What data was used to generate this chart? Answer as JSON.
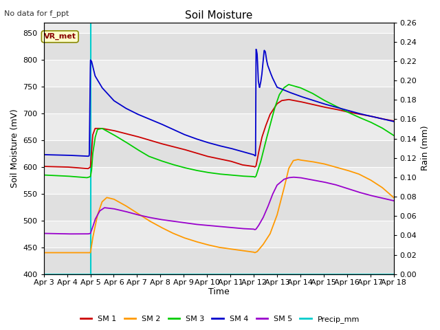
{
  "title": "Soil Moisture",
  "subtitle": "No data for f_ppt",
  "xlabel": "Time",
  "ylabel_left": "Soil Moisture (mV)",
  "ylabel_right": "Rain (mm)",
  "ylim_left": [
    400,
    870
  ],
  "ylim_right": [
    0.0,
    0.26
  ],
  "yticks_left": [
    400,
    450,
    500,
    550,
    600,
    650,
    700,
    750,
    800,
    850
  ],
  "yticks_right": [
    0.0,
    0.02,
    0.04,
    0.06,
    0.08,
    0.1,
    0.12,
    0.14,
    0.16,
    0.18,
    0.2,
    0.22,
    0.24,
    0.26
  ],
  "xtick_labels": [
    "Apr 3",
    "Apr 4",
    "Apr 5",
    "Apr 6",
    "Apr 7",
    "Apr 8",
    "Apr 9",
    "Apr 10",
    "Apr 11",
    "Apr 12",
    "Apr 13",
    "Apr 14",
    "Apr 15",
    "Apr 16",
    "Apr 17",
    "Apr 18"
  ],
  "colors": {
    "SM1": "#cc0000",
    "SM2": "#ff9900",
    "SM3": "#00cc00",
    "SM4": "#0000cc",
    "SM5": "#9900cc",
    "Precip": "#00cccc",
    "band_dark": "#e0e0e0",
    "band_light": "#ebebeb"
  },
  "legend_labels": [
    "SM 1",
    "SM 2",
    "SM 3",
    "SM 4",
    "SM 5",
    "Precip_mm"
  ],
  "annotation_box": "VR_met",
  "figsize": [
    6.4,
    4.8
  ],
  "dpi": 100
}
